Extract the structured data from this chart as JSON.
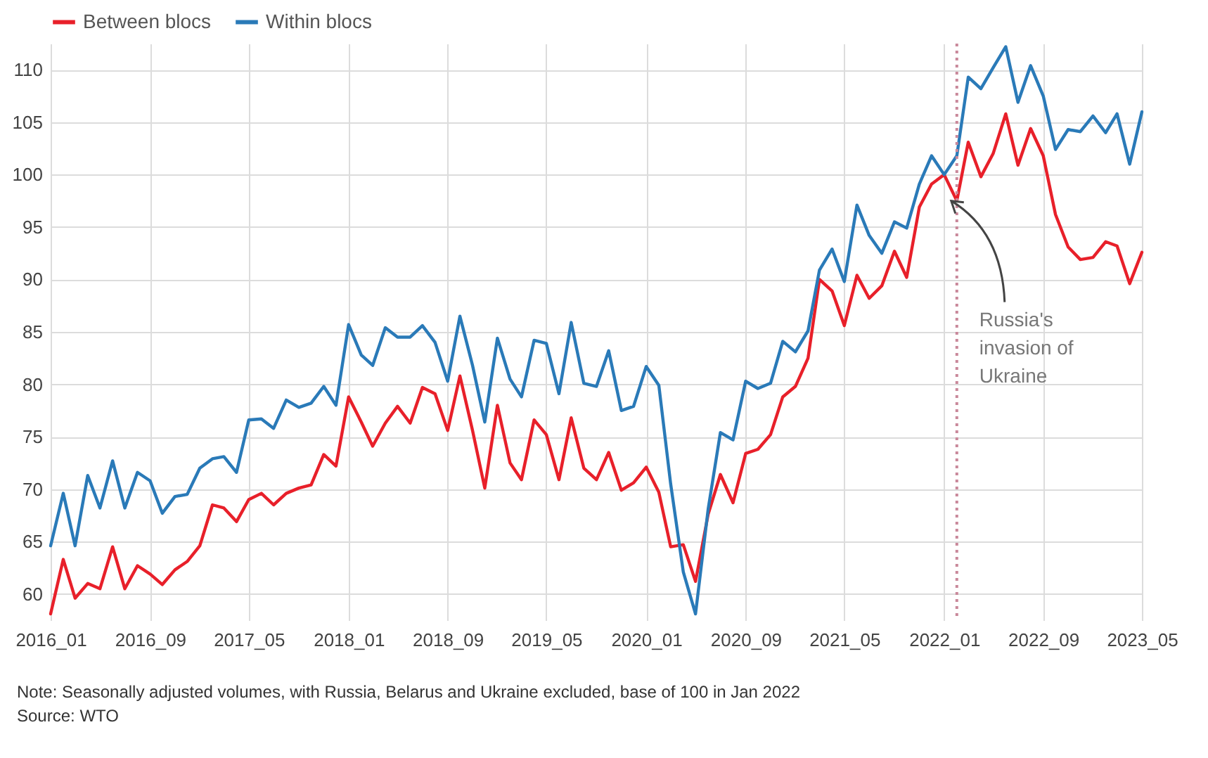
{
  "chart_data": {
    "type": "line",
    "x": [
      "2016-01",
      "2016-02",
      "2016-03",
      "2016-04",
      "2016-05",
      "2016-06",
      "2016-07",
      "2016-08",
      "2016-09",
      "2016-10",
      "2016-11",
      "2016-12",
      "2017-01",
      "2017-02",
      "2017-03",
      "2017-04",
      "2017-05",
      "2017-06",
      "2017-07",
      "2017-08",
      "2017-09",
      "2017-10",
      "2017-11",
      "2017-12",
      "2018-01",
      "2018-02",
      "2018-03",
      "2018-04",
      "2018-05",
      "2018-06",
      "2018-07",
      "2018-08",
      "2018-09",
      "2018-10",
      "2018-11",
      "2018-12",
      "2019-01",
      "2019-02",
      "2019-03",
      "2019-04",
      "2019-05",
      "2019-06",
      "2019-07",
      "2019-08",
      "2019-09",
      "2019-10",
      "2019-11",
      "2019-12",
      "2020-01",
      "2020-02",
      "2020-03",
      "2020-04",
      "2020-05",
      "2020-06",
      "2020-07",
      "2020-08",
      "2020-09",
      "2020-10",
      "2020-11",
      "2020-12",
      "2021-01",
      "2021-02",
      "2021-03",
      "2021-04",
      "2021-05",
      "2021-06",
      "2021-07",
      "2021-08",
      "2021-09",
      "2021-10",
      "2021-11",
      "2021-12",
      "2022-01",
      "2022-02",
      "2022-03",
      "2022-04",
      "2022-05",
      "2022-06",
      "2022-07",
      "2022-08",
      "2022-09",
      "2022-10",
      "2022-11",
      "2022-12",
      "2023-01",
      "2023-02",
      "2023-03",
      "2023-04",
      "2023-05"
    ],
    "series": [
      {
        "name": "Between blocs",
        "color": "#e8202a",
        "values": [
          58.1,
          63.3,
          59.6,
          61.0,
          60.5,
          64.5,
          60.5,
          62.7,
          61.9,
          60.9,
          62.3,
          63.1,
          64.6,
          68.5,
          68.2,
          66.9,
          69.0,
          69.6,
          68.5,
          69.6,
          70.1,
          70.4,
          73.3,
          72.2,
          78.8,
          76.4,
          74.1,
          76.3,
          77.9,
          76.3,
          79.7,
          79.1,
          75.6,
          80.8,
          75.6,
          70.1,
          78.0,
          72.5,
          70.9,
          76.6,
          75.2,
          70.9,
          76.8,
          72.0,
          70.9,
          73.5,
          69.9,
          70.6,
          72.1,
          69.7,
          64.5,
          64.7,
          61.2,
          67.6,
          71.4,
          68.7,
          73.4,
          73.8,
          75.2,
          78.8,
          79.8,
          82.5,
          90.0,
          88.9,
          85.6,
          90.4,
          88.2,
          89.4,
          92.7,
          90.2,
          96.9,
          99.1,
          100.0,
          97.5,
          103.1,
          99.8,
          102.0,
          105.8,
          100.9,
          104.4,
          101.8,
          96.2,
          93.1,
          91.9,
          92.1,
          93.6,
          93.2,
          89.6,
          92.6
        ]
      },
      {
        "name": "Within blocs",
        "color": "#2a7ab8",
        "values": [
          64.6,
          69.6,
          64.6,
          71.3,
          68.2,
          72.7,
          68.2,
          71.6,
          70.8,
          67.7,
          69.3,
          69.5,
          72.0,
          72.9,
          73.1,
          71.6,
          76.6,
          76.7,
          75.8,
          78.5,
          77.8,
          78.2,
          79.8,
          78.0,
          85.7,
          82.8,
          81.8,
          85.4,
          84.5,
          84.5,
          85.6,
          84.0,
          80.3,
          86.5,
          81.8,
          76.4,
          84.4,
          80.5,
          78.8,
          84.2,
          83.9,
          79.1,
          85.9,
          80.1,
          79.8,
          83.2,
          77.5,
          77.9,
          81.7,
          79.9,
          70.5,
          62.1,
          58.1,
          68.1,
          75.4,
          74.7,
          80.3,
          79.6,
          80.1,
          84.1,
          83.1,
          85.1,
          90.9,
          92.9,
          89.8,
          97.1,
          94.2,
          92.5,
          95.5,
          94.9,
          99.1,
          101.8,
          100.0,
          101.8,
          109.3,
          108.2,
          110.2,
          112.2,
          106.9,
          110.4,
          107.5,
          102.4,
          104.3,
          104.1,
          105.6,
          104.0,
          105.8,
          101.0,
          106.0
        ]
      }
    ],
    "xlim": [
      "2016-01",
      "2023-05"
    ],
    "xticks": [
      {
        "value": "2016-01",
        "label": "2016_01"
      },
      {
        "value": "2016-09",
        "label": "2016_09"
      },
      {
        "value": "2017-05",
        "label": "2017_05"
      },
      {
        "value": "2018-01",
        "label": "2018_01"
      },
      {
        "value": "2018-09",
        "label": "2018_09"
      },
      {
        "value": "2019-05",
        "label": "2019_05"
      },
      {
        "value": "2020-01",
        "label": "2020_01"
      },
      {
        "value": "2020-09",
        "label": "2020_09"
      },
      {
        "value": "2021-05",
        "label": "2021_05"
      },
      {
        "value": "2022-01",
        "label": "2022_01"
      },
      {
        "value": "2022-09",
        "label": "2022_09"
      },
      {
        "value": "2023-05",
        "label": "2023_05"
      }
    ],
    "ylim": [
      57.5,
      112.5
    ],
    "yticks": [
      60,
      65,
      70,
      75,
      80,
      85,
      90,
      95,
      100,
      105,
      110
    ],
    "grid": true,
    "legend": "top left",
    "marker": "none",
    "line_style": "solid",
    "ref_lines": [
      {
        "axis": "x",
        "value": "2022-02",
        "color": "#c9889a",
        "line_style": "dotted"
      }
    ],
    "annotations": [
      {
        "text": "Russia's invasion of Ukraine",
        "x": "2022-02",
        "y": 97.5
      },
      "Note: Seasonally adjusted volumes, with Russia, Belarus and Ukraine excluded, base of 100 in Jan 2022",
      "Source: WTO"
    ]
  }
}
